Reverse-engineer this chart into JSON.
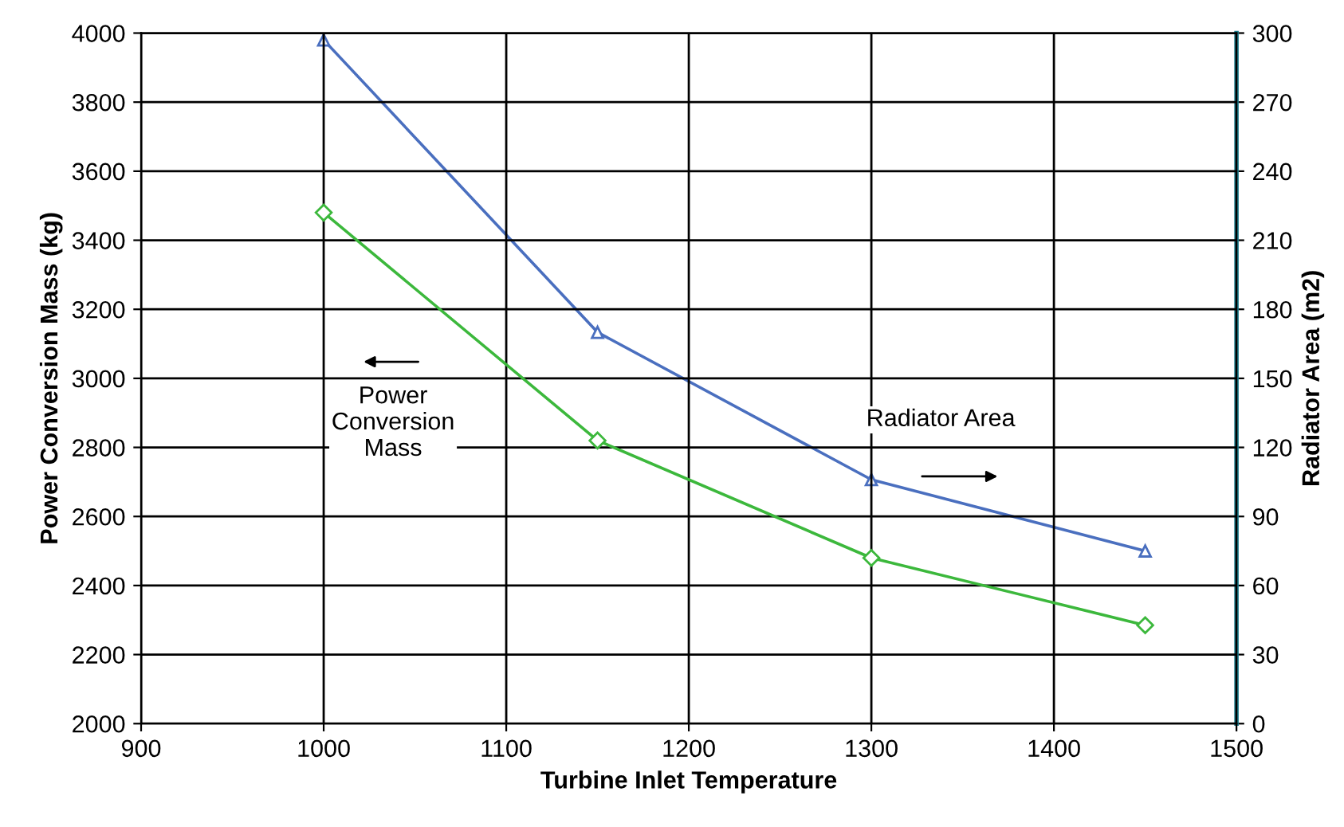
{
  "chart_data": {
    "type": "line",
    "xlabel": "Turbine Inlet Temperature",
    "ylabel": "Power Conversion Mass (kg)",
    "y2label": "Radiator Area (m2)",
    "x": [
      1000,
      1150,
      1300,
      1450
    ],
    "series": [
      {
        "color": "#4a6fbf",
        "values": [
          297,
          170,
          106,
          75
        ],
        "axis": "y2",
        "marker": "triangle"
      },
      {
        "color": "#3cb83c",
        "values": [
          3480,
          2820,
          2480,
          2285
        ],
        "marker": "diamond"
      }
    ],
    "annotations": [
      "Radiator Area",
      "Power\nConversion\nMass"
    ],
    "xlim": [
      900,
      1500
    ],
    "xticks": [
      900,
      1000,
      1100,
      1200,
      1300,
      1400,
      1500
    ],
    "ylim": [
      2000,
      4000
    ],
    "yticks": [
      2000,
      2200,
      2400,
      2600,
      2800,
      3000,
      3200,
      3400,
      3600,
      3800,
      4000
    ],
    "y2lim": [
      0,
      300
    ],
    "y2ticks": [
      0,
      30,
      60,
      90,
      120,
      150,
      180,
      210,
      240,
      270,
      300
    ],
    "grid": true,
    "legend": false,
    "line_style": "solid"
  }
}
